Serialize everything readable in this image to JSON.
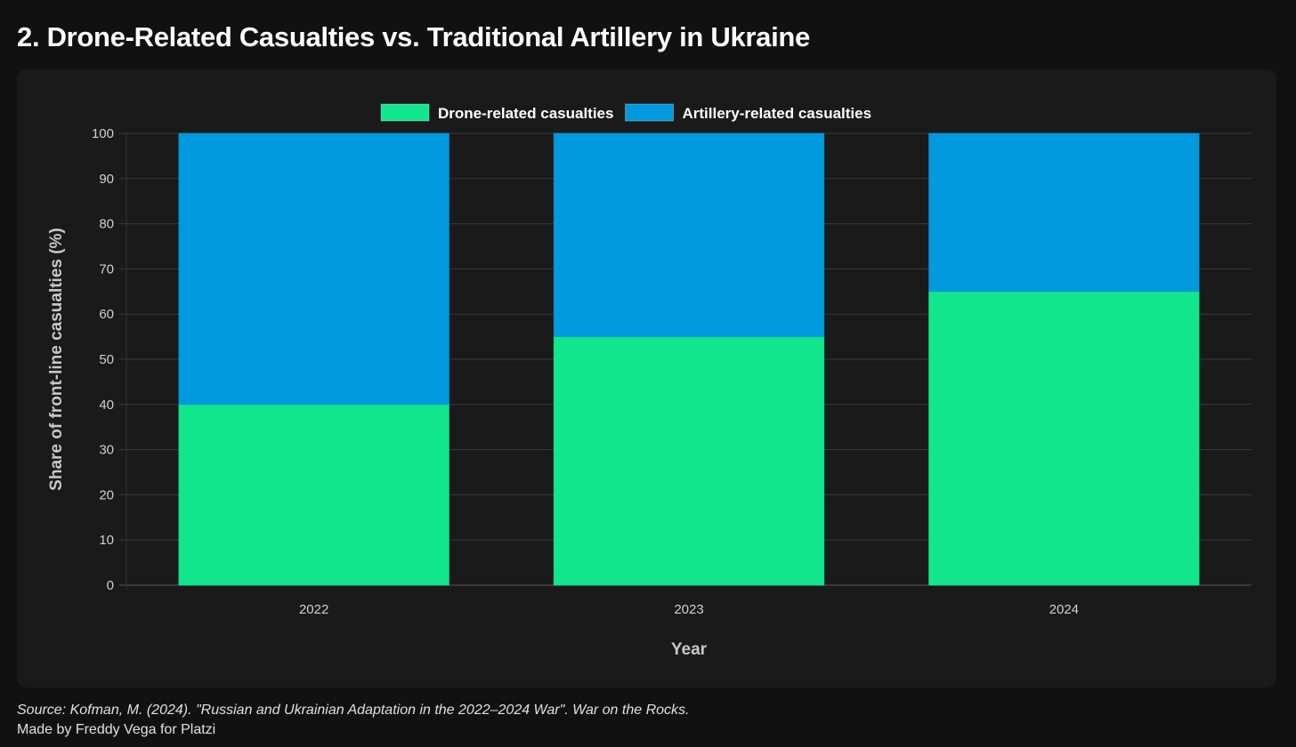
{
  "title": "2. Drone-Related Casualties vs. Traditional Artillery in Ukraine",
  "footer": {
    "source": "Source: Kofman, M. (2024). \"Russian and Ukrainian Adaptation in the 2022–2024 War\". War on the Rocks.",
    "credit": "Made by Freddy Vega for Platzi"
  },
  "chart_data": {
    "type": "bar",
    "stacked": true,
    "title": "2. Drone-Related Casualties vs. Traditional Artillery in Ukraine",
    "xlabel": "Year",
    "ylabel": "Share of front-line casualties (%)",
    "categories": [
      "2022",
      "2023",
      "2024"
    ],
    "series": [
      {
        "name": "Drone-related casualties",
        "values": [
          40,
          55,
          65
        ],
        "color": "#12e68c"
      },
      {
        "name": "Artillery-related casualties",
        "values": [
          60,
          45,
          35
        ],
        "color": "#0099dd"
      }
    ],
    "ylim": [
      0,
      100
    ],
    "yticks": [
      0,
      10,
      20,
      30,
      40,
      50,
      60,
      70,
      80,
      90,
      100
    ],
    "grid": true,
    "legend": "top-center"
  }
}
